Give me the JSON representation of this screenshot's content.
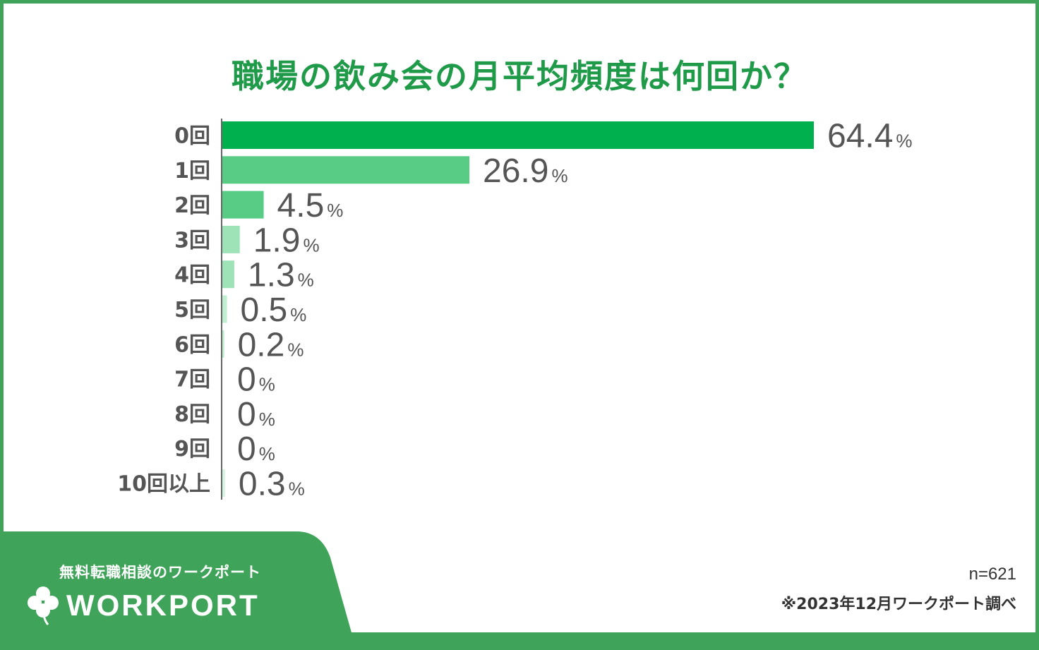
{
  "chart_data": {
    "type": "bar",
    "orientation": "horizontal",
    "title": "職場の飲み会の月平均頻度は何回か？",
    "categories": [
      "0回",
      "1回",
      "2回",
      "3回",
      "4回",
      "5回",
      "6回",
      "7回",
      "8回",
      "9回",
      "10回以上"
    ],
    "value_labels": [
      "64.4",
      "26.9",
      "4.5",
      "1.9",
      "1.3",
      "0.5",
      "0.2",
      "0",
      "0",
      "0",
      "0.3"
    ],
    "values": [
      64.4,
      26.9,
      4.5,
      1.9,
      1.3,
      0.5,
      0.2,
      0,
      0,
      0,
      0.3
    ],
    "unit": "%",
    "xlim": [
      0,
      100
    ],
    "colors": [
      "#00b04f",
      "#58cc85",
      "#58cc85",
      "#9ee3b8",
      "#9ee3b8",
      "#bfeed0",
      "#bfeed0",
      "#d6f4e1",
      "#d6f4e1",
      "#d6f4e1",
      "#d6f4e1"
    ],
    "sample_size": "n=621",
    "source": "※2023年12月ワークポート調べ"
  },
  "branding": {
    "tagline": "無料転職相談のワークポート",
    "logo_text": "WORKPORT",
    "logo_icon": "clover-icon",
    "footer_color": "#3fa45a"
  },
  "theme": {
    "title_color": "#1f9a48",
    "label_color": "#555555",
    "axis_color": "#666666"
  }
}
